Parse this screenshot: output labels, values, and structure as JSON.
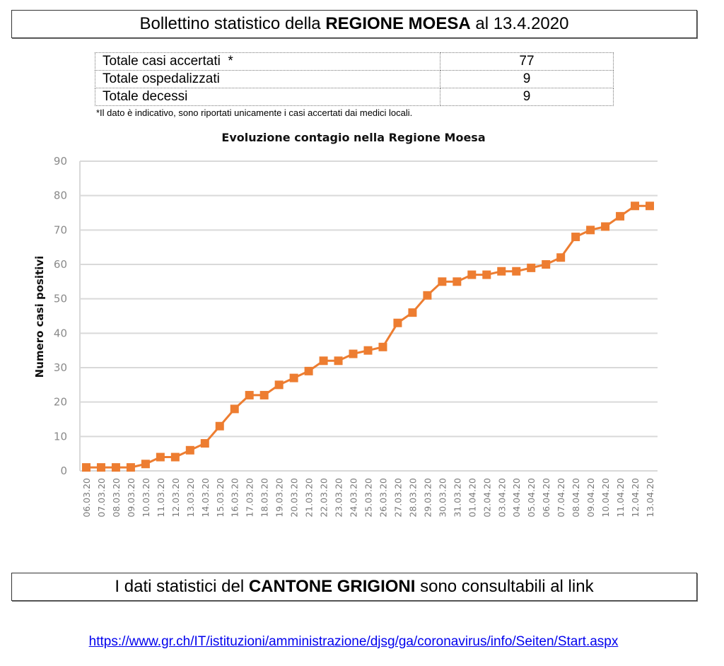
{
  "header": {
    "prefix": "Bollettino statistico della ",
    "bold": "REGIONE MOESA",
    "suffix": " al 13.4.2020"
  },
  "stats": {
    "rows": [
      {
        "label": "Totale casi accertati  *",
        "value": "77"
      },
      {
        "label": "Totale ospedalizzati",
        "value": "9"
      },
      {
        "label": "Totale decessi",
        "value": "9"
      }
    ],
    "footnote": "*Il dato è indicativo, sono riportati unicamente i casi accertati dai medici locali."
  },
  "footer": {
    "prefix": "I dati statistici del ",
    "bold": "CANTONE GRIGIONI",
    "suffix": " sono consultabili al link",
    "link": "https://www.gr.ch/IT/istituzioni/amministrazione/djsg/ga/coronavirus/info/Seiten/Start.aspx"
  },
  "colors": {
    "series": "#ed7d31",
    "grid": "#d9d9d9",
    "link": "#0000ee"
  },
  "chart_data": {
    "type": "line",
    "title": "Evoluzione contagio nella Regione Moesa",
    "xlabel": "",
    "ylabel": "Numero casi positivi",
    "ylim": [
      0,
      90
    ],
    "yticks": [
      0,
      10,
      20,
      30,
      40,
      50,
      60,
      70,
      80,
      90
    ],
    "grid": true,
    "legend": "none",
    "categories": [
      "06.03.20",
      "07.03.20",
      "08.03.20",
      "09.03.20",
      "10.03.20",
      "11.03.20",
      "12.03.20",
      "13.03.20",
      "14.03.20",
      "15.03.20",
      "16.03.20",
      "17.03.20",
      "18.03.20",
      "19.03.20",
      "20.03.20",
      "21.03.20",
      "22.03.20",
      "23.03.20",
      "24.03.20",
      "25.03.20",
      "26.03.20",
      "27.03.20",
      "28.03.20",
      "29.03.20",
      "30.03.20",
      "31.03.20",
      "01.04.20",
      "02.04.20",
      "03.04.20",
      "04.04.20",
      "05.04.20",
      "06.04.20",
      "07.04.20",
      "08.04.20",
      "09.04.20",
      "10.04.20",
      "11.04.20",
      "12.04.20",
      "13.04.20"
    ],
    "series": [
      {
        "name": "Casi positivi",
        "values": [
          1,
          1,
          1,
          1,
          2,
          4,
          4,
          6,
          8,
          13,
          18,
          22,
          22,
          25,
          27,
          29,
          32,
          32,
          34,
          35,
          36,
          43,
          46,
          51,
          55,
          55,
          57,
          57,
          58,
          58,
          59,
          60,
          62,
          68,
          70,
          71,
          74,
          77,
          77
        ]
      }
    ]
  }
}
